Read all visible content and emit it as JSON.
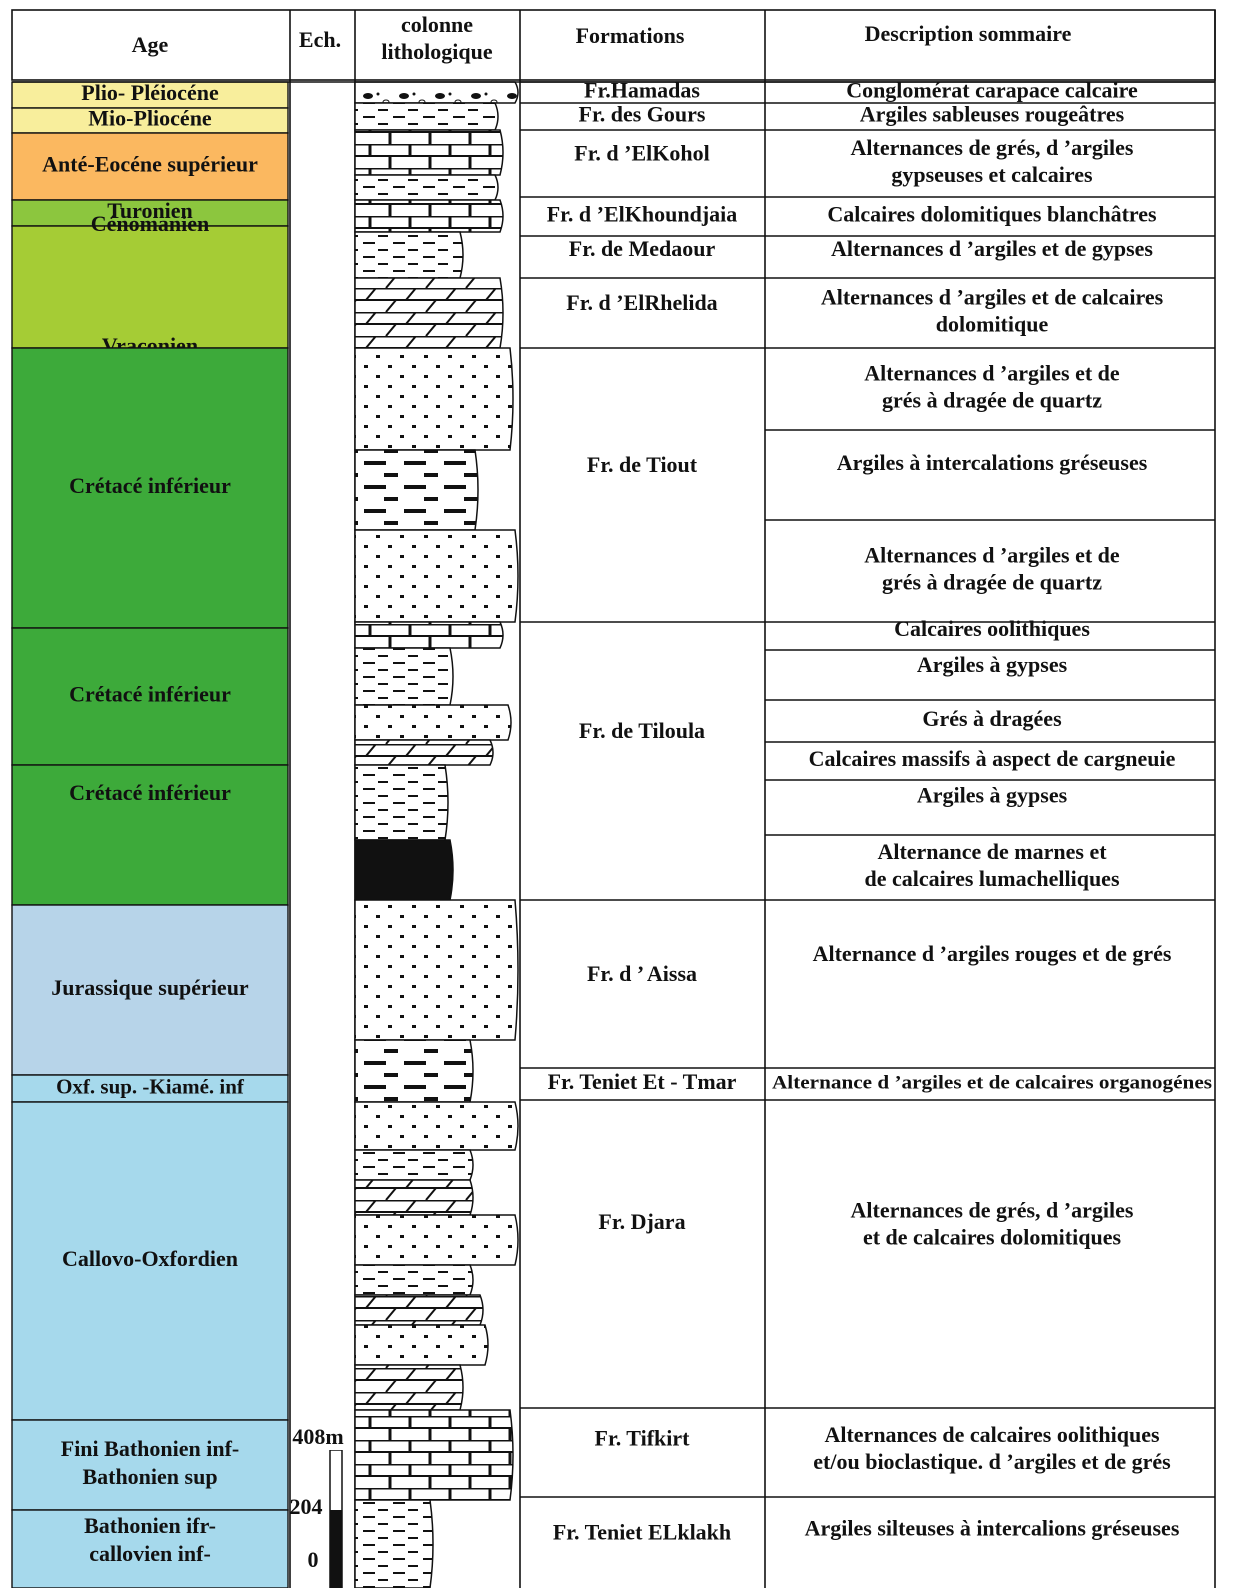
{
  "header": {
    "age": "Age",
    "ech": "Ech.",
    "colonne": [
      "colonne",
      "lithologique"
    ],
    "formations": "Formations",
    "description": "Description sommaire"
  },
  "ages": [
    {
      "lines": [
        "Plio- Pléiocéne"
      ]
    },
    {
      "lines": [
        "Mio-Pliocéne"
      ]
    },
    {
      "lines": [
        "Anté-Eocéne supérieur"
      ]
    },
    {
      "lines": [
        "Turonien"
      ]
    },
    {
      "lines": [
        "Cénomanien",
        "Vraconien"
      ]
    },
    {
      "lines": [
        "Crétacé inférieur"
      ]
    },
    {
      "lines": [
        "Crétacé inférieur"
      ]
    },
    {
      "lines": [
        "Crétacé inférieur"
      ]
    },
    {
      "lines": [
        "Jurassique supérieur"
      ]
    },
    {
      "lines": [
        "Oxf. sup. -Kiamé. inf"
      ]
    },
    {
      "lines": [
        "Callovo-Oxfordien"
      ]
    },
    {
      "lines": [
        "Fini Bathonien inf-",
        "Bathonien sup"
      ]
    },
    {
      "lines": [
        "Bathonien ifr-",
        "callovien inf-"
      ]
    }
  ],
  "scale": [
    "408m",
    "204",
    "0"
  ],
  "formations": [
    "Fr.Hamadas",
    "Fr. des Gours",
    "Fr. d ’ElKohol",
    "Fr. d ’ElKhoundjaia",
    "Fr. de Medaour",
    "Fr. d ’ElRhelida",
    "Fr. de Tiout",
    "Fr. de Tiloula",
    "Fr. d ’ Aissa",
    "Fr. Teniet Et - Tmar",
    "Fr. Djara",
    "Fr. Tifkirt",
    "Fr. Teniet ELklakh"
  ],
  "descriptions": [
    {
      "lines": [
        "Conglomérat carapace calcaire"
      ]
    },
    {
      "lines": [
        "Argiles sableuses rougeâtres"
      ]
    },
    {
      "lines": [
        "Alternances de grés, d ’argiles",
        "gypseuses et calcaires"
      ]
    },
    {
      "lines": [
        "Calcaires dolomitiques blanchâtres"
      ]
    },
    {
      "lines": [
        "Alternances d ’argiles et de gypses"
      ]
    },
    {
      "lines": [
        "Alternances d ’argiles et de calcaires",
        "dolomitique"
      ]
    },
    {
      "lines": [
        "Alternances d ’argiles et de",
        "grés à dragée de quartz"
      ]
    },
    {
      "lines": [
        "Argiles à intercalations gréseuses"
      ]
    },
    {
      "lines": [
        "Alternances d ’argiles et de",
        "grés à dragée de quartz"
      ]
    },
    {
      "lines": [
        "Calcaires oolithiques"
      ]
    },
    {
      "lines": [
        "Argiles à gypses"
      ]
    },
    {
      "lines": [
        "Grés à dragées"
      ]
    },
    {
      "lines": [
        "Calcaires massifs à aspect de cargneuie"
      ]
    },
    {
      "lines": [
        "Argiles à gypses"
      ]
    },
    {
      "lines": [
        "Alternance de marnes et",
        "de calcaires lumachelliques"
      ]
    },
    {
      "lines": [
        "Alternance d ’argiles rouges et de grés"
      ]
    },
    {
      "lines": [
        "Alternance d ’argiles et de calcaires organogénes"
      ]
    },
    {
      "lines": [
        "Alternances de grés, d ’argiles",
        "et de calcaires dolomitiques"
      ]
    },
    {
      "lines": [
        "Alternances de calcaires oolithiques",
        "et/ou bioclastique. d ’argiles et de grés"
      ]
    },
    {
      "lines": [
        "Argiles silteuses à intercalions gréseuses"
      ]
    }
  ]
}
